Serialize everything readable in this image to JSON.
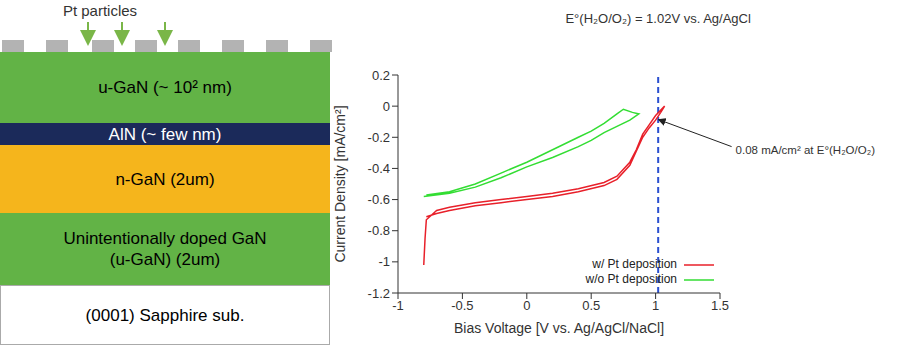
{
  "diagram": {
    "label": "Pt particles",
    "layers": [
      {
        "label": "u-GaN (~ 10² nm)"
      },
      {
        "label": "AlN (~ few nm)"
      },
      {
        "label": "n-GaN (2um)"
      },
      {
        "label": "Unintentionally doped GaN\n(u-GaN) (2um)"
      },
      {
        "label": "(0001) Sapphire sub."
      }
    ]
  },
  "chart_data": {
    "type": "line",
    "x_label": "Bias Voltage [V vs. Ag/AgCl/NaCl]",
    "y_label": "Current Density [mA/cm²]",
    "xlim": [
      -1,
      1.5
    ],
    "xticks": [
      -1,
      -0.5,
      0,
      0.5,
      1,
      1.5
    ],
    "ylim": [
      -1.2,
      0.2
    ],
    "yticks": [
      -1.2,
      -1,
      -0.8,
      -0.6,
      -0.4,
      -0.2,
      0,
      0.2
    ],
    "grid": false,
    "legend": "lower right",
    "series": [
      {
        "name": "w/ Pt deposition",
        "color": "#e8202a",
        "line_style": "solid",
        "x": [
          -0.8,
          -0.79,
          -0.78,
          -0.7,
          -0.6,
          -0.4,
          -0.2,
          0,
          0.2,
          0.4,
          0.6,
          0.7,
          0.8,
          0.85,
          0.9,
          0.95,
          1.0,
          1.07,
          1.04,
          1.0,
          0.95,
          0.9,
          0.85,
          0.8,
          0.7,
          0.6,
          0.4,
          0.2,
          0,
          -0.2,
          -0.4,
          -0.6,
          -0.7,
          -0.78
        ],
        "values": [
          -1.02,
          -0.85,
          -0.73,
          -0.67,
          -0.65,
          -0.62,
          -0.6,
          -0.58,
          -0.56,
          -0.53,
          -0.49,
          -0.45,
          -0.36,
          -0.28,
          -0.18,
          -0.12,
          -0.06,
          0.0,
          -0.04,
          -0.09,
          -0.14,
          -0.2,
          -0.29,
          -0.38,
          -0.47,
          -0.51,
          -0.55,
          -0.58,
          -0.6,
          -0.62,
          -0.64,
          -0.67,
          -0.69,
          -0.71
        ]
      },
      {
        "name": "w/o Pt deposition",
        "color": "#33dd33",
        "line_style": "solid",
        "x": [
          -0.8,
          -0.6,
          -0.4,
          -0.2,
          0,
          0.2,
          0.4,
          0.5,
          0.6,
          0.7,
          0.8,
          0.87,
          0.82,
          0.75,
          0.7,
          0.6,
          0.5,
          0.4,
          0.2,
          0,
          -0.2,
          -0.4,
          -0.6,
          -0.78
        ],
        "values": [
          -0.58,
          -0.56,
          -0.52,
          -0.46,
          -0.39,
          -0.33,
          -0.26,
          -0.22,
          -0.17,
          -0.13,
          -0.09,
          -0.05,
          -0.04,
          -0.02,
          -0.05,
          -0.11,
          -0.16,
          -0.2,
          -0.28,
          -0.36,
          -0.43,
          -0.5,
          -0.55,
          -0.57
        ]
      }
    ],
    "annotations": [
      {
        "type": "vline",
        "x": 1.02,
        "text": "E°(H₂O/O₂) = 1.02V vs. Ag/AgCl",
        "color": "#2a4fd0",
        "line_style": "dashed"
      },
      {
        "type": "arrow",
        "x": 1.0,
        "y": -0.08,
        "text": "0.08 mA/cm² at E°(H₂O/O₂)"
      }
    ]
  }
}
